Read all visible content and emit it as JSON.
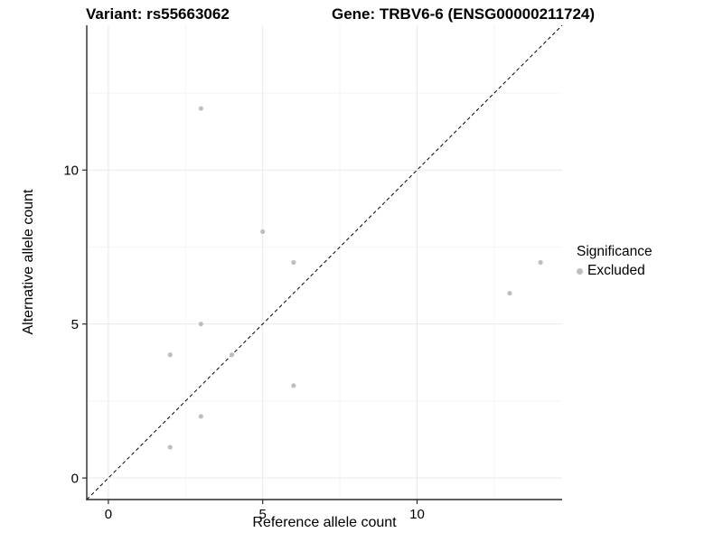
{
  "titles": {
    "variant": "Variant: rs55663062",
    "gene": "Gene: TRBV6-6 (ENSG00000211724)"
  },
  "legend": {
    "title": "Significance",
    "items": [
      {
        "label": "Excluded",
        "color": "#bebebe",
        "marker": "dot"
      }
    ]
  },
  "colors": {
    "point": "#bebebe",
    "grid_major": "#e9e9e9",
    "grid_minor": "#f4f4f4",
    "axis_line": "#2b2b2b",
    "tick_text": "#000000",
    "identity_line": "#000000",
    "background": "#ffffff"
  },
  "chart_data": {
    "type": "scatter",
    "title": "Variant: rs55663062  /  Gene: TRBV6-6 (ENSG00000211724)",
    "xlabel": "Reference allele count",
    "ylabel": "Alternative allele count",
    "xlim": [
      -0.7,
      14.7
    ],
    "ylim": [
      -0.7,
      14.7
    ],
    "x_ticks_major": [
      0,
      5,
      10
    ],
    "x_ticks_minor": [
      2.5,
      7.5,
      12.5
    ],
    "y_ticks_major": [
      0,
      5,
      10
    ],
    "y_ticks_minor": [
      2.5,
      7.5,
      12.5
    ],
    "grid": true,
    "legend_position": "right",
    "series": [
      {
        "name": "Excluded",
        "color": "#bebebe",
        "marker_radius": 2.6,
        "points": [
          [
            2,
            1
          ],
          [
            2,
            4
          ],
          [
            3,
            2
          ],
          [
            3,
            5
          ],
          [
            3,
            12
          ],
          [
            4,
            4
          ],
          [
            5,
            8
          ],
          [
            6,
            3
          ],
          [
            6,
            7
          ],
          [
            13,
            6
          ],
          [
            14,
            7
          ]
        ]
      }
    ],
    "identity_line": {
      "style": "dashed",
      "from": [
        -0.7,
        -0.7
      ],
      "to": [
        14.7,
        14.7
      ]
    }
  }
}
